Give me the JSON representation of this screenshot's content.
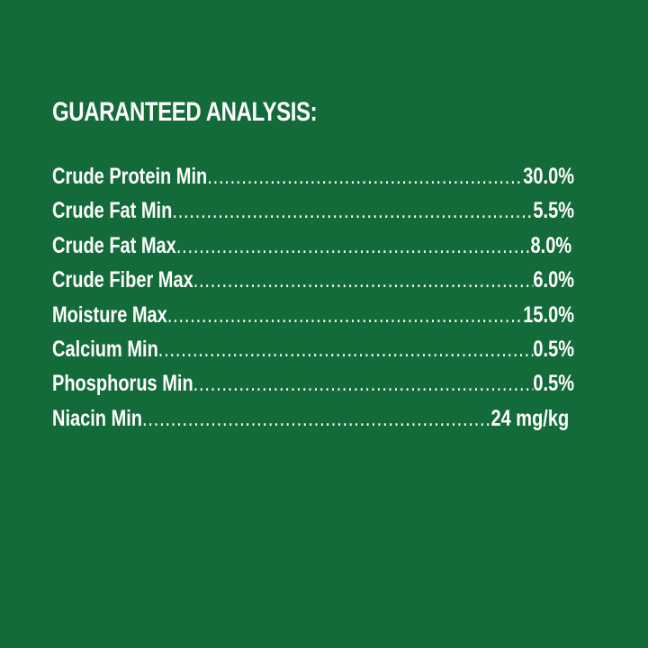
{
  "title": "GUARANTEED ANALYSIS:",
  "background_color": "#146b3a",
  "rows": [
    {
      "label": "Crude Protein Min",
      "value": "30.0%"
    },
    {
      "label": "Crude Fat Min",
      "value": "5.5%"
    },
    {
      "label": "Crude Fat Max",
      "value": "8.0%"
    },
    {
      "label": "Crude Fiber Max",
      "value": "6.0%"
    },
    {
      "label": "Moisture Max",
      "value": "15.0%"
    },
    {
      "label": "Calcium Min",
      "value": "0.5%"
    },
    {
      "label": "Phosphorus Min",
      "value": "0.5%"
    },
    {
      "label": "Niacin Min",
      "value": "24 mg/kg"
    }
  ]
}
